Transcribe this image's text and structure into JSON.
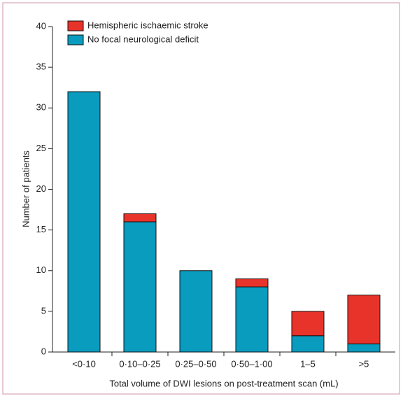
{
  "chart_data": {
    "type": "stacked-bar",
    "x_label": "Total volume of DWI lesions on post-treatment scan (mL)",
    "y_label": "Number of patients",
    "categories": [
      "<0·10",
      "0·10–0·25",
      "0·25–0·50",
      "0·50–1·00",
      "1–5",
      ">5"
    ],
    "series": [
      {
        "name": "No focal neurological deficit",
        "color": "#0a9cbf",
        "values": [
          32,
          16,
          10,
          8,
          2,
          1
        ]
      },
      {
        "name": "Hemispheric ischaemic stroke",
        "color": "#e8332a",
        "values": [
          0,
          1,
          0,
          1,
          3,
          6
        ]
      }
    ],
    "ylim": [
      0,
      40
    ],
    "yticks": [
      0,
      5,
      10,
      15,
      20,
      25,
      30,
      35,
      40
    ]
  }
}
